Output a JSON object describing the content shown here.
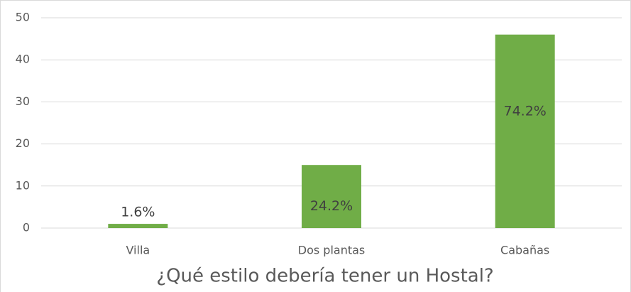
{
  "chart_data": {
    "type": "bar",
    "title": "¿Qué estilo debería tener un Hostal?",
    "categories": [
      "Villa",
      "Dos plantas",
      "Cabañas"
    ],
    "values": [
      1,
      15,
      46
    ],
    "data_labels": [
      "1.6%",
      "24.2%",
      "74.2%"
    ],
    "color": "#70ad47",
    "ylim": [
      0,
      50
    ],
    "yticks": [
      0,
      10,
      20,
      30,
      40,
      50
    ],
    "grid": true
  }
}
